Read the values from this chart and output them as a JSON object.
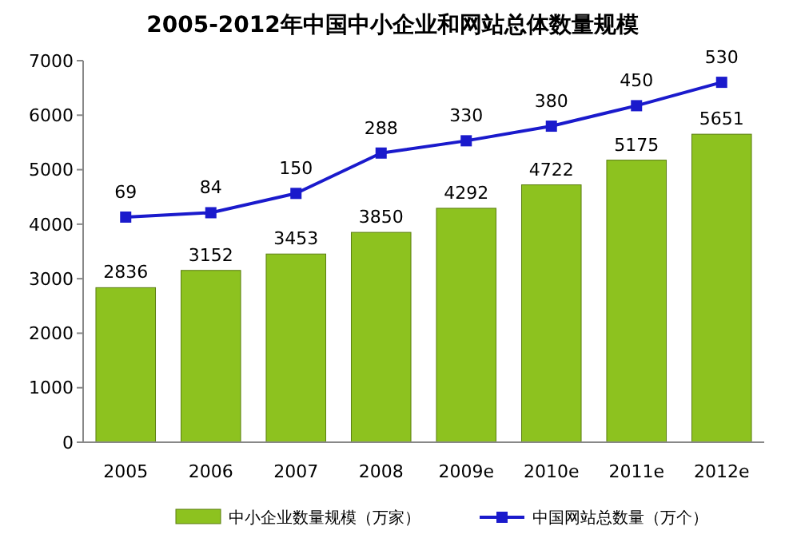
{
  "chart_data": {
    "type": "bar",
    "title": "2005-2012年中国中小企业和网站总体数量规模",
    "categories": [
      "2005",
      "2006",
      "2007",
      "2008",
      "2009e",
      "2010e",
      "2011e",
      "2012e"
    ],
    "series": [
      {
        "name": "中小企业数量规模（万家）",
        "color": "#8dc21f",
        "values": [
          2836,
          3152,
          3453,
          3850,
          4292,
          4722,
          5175,
          5651
        ]
      },
      {
        "name": "中国网站总数量（万个）",
        "type": "line",
        "axis": "y2",
        "color": "#1a1acc",
        "values": [
          69,
          84,
          150,
          288,
          330,
          380,
          450,
          530
        ]
      }
    ],
    "ylim": [
      0,
      7000
    ],
    "yticks": [
      0,
      1000,
      2000,
      3000,
      4000,
      5000,
      6000,
      7000
    ],
    "y2lim": [
      -701,
      604
    ],
    "tick_labels": "xy",
    "data_labels": true,
    "legend": "bottom",
    "marker": "square",
    "line_style": "solid",
    "grid": false
  }
}
